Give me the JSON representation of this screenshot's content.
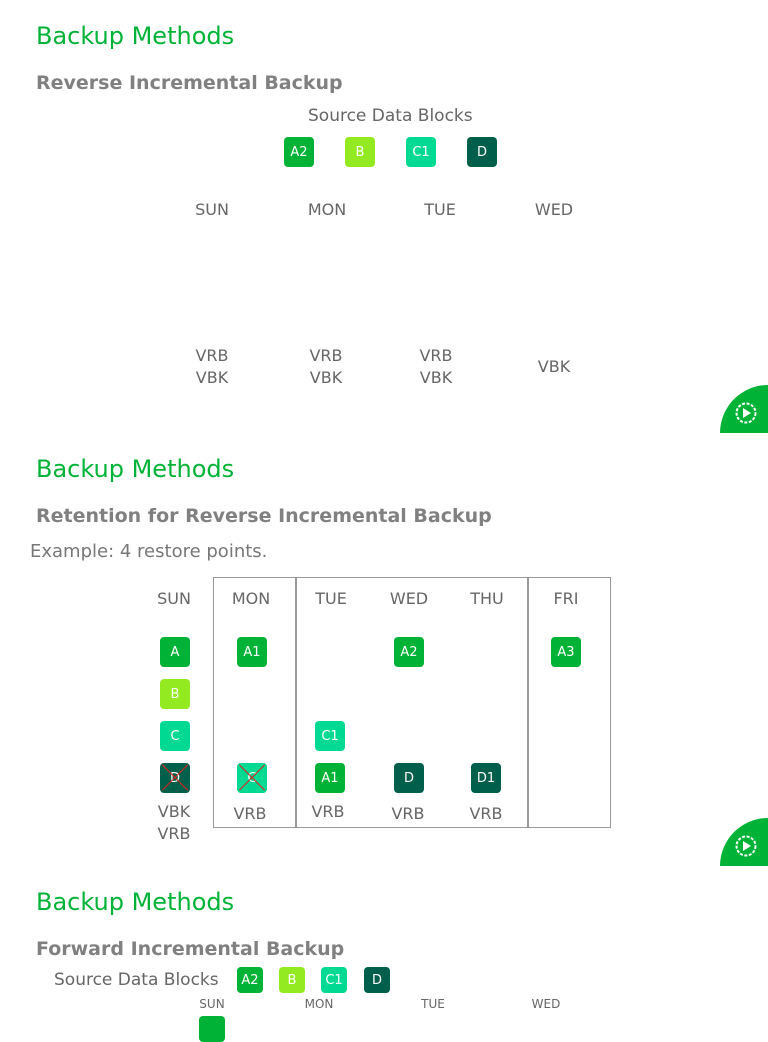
{
  "colors": {
    "green": "#00b336",
    "lime": "#93ea20",
    "mint": "#00d992",
    "dark": "#005f4b"
  },
  "slide1": {
    "title": "Backup Methods",
    "subtitle": "Reverse Incremental Backup",
    "source_label": "Source Data Blocks",
    "blocks": [
      "A2",
      "B",
      "C1",
      "D"
    ],
    "days": [
      "SUN",
      "MON",
      "TUE",
      "WED"
    ],
    "labels": [
      "VRB",
      "VBK",
      "VRB",
      "VBK",
      "VRB",
      "VBK",
      "VBK"
    ]
  },
  "slide2": {
    "title": "Backup Methods",
    "subtitle": "Retention for Reverse Incremental Backup",
    "example": "Example: 4 restore points.",
    "days": [
      "SUN",
      "MON",
      "TUE",
      "WED",
      "THU",
      "FRI"
    ],
    "sun": [
      "A",
      "B",
      "C",
      "D"
    ],
    "mon": [
      "A1",
      "C"
    ],
    "tue": [
      "C1",
      "A1"
    ],
    "wed": [
      "A2",
      "D"
    ],
    "thu": [
      "D1"
    ],
    "fri": [
      "A3"
    ],
    "labels": [
      "VBK",
      "VRB",
      "VRB",
      "VRB",
      "VRB",
      "VRB"
    ]
  },
  "slide3": {
    "title": "Backup Methods",
    "subtitle": "Forward Incremental Backup",
    "source_label": "Source Data Blocks",
    "blocks": [
      "A2",
      "B",
      "C1",
      "D"
    ],
    "days": [
      "SUN",
      "MON",
      "TUE",
      "WED"
    ]
  },
  "icons": {
    "play": "play-gear-icon"
  }
}
